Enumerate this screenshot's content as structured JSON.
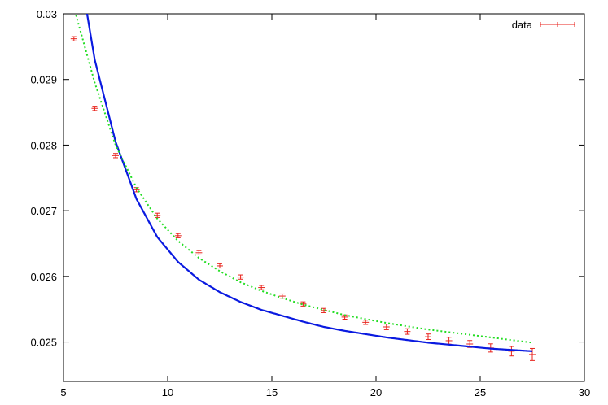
{
  "chart_data": {
    "type": "scatter",
    "title": "",
    "xlabel": "",
    "ylabel": "",
    "xlim": [
      5,
      30
    ],
    "ylim": [
      0.0244,
      0.03
    ],
    "x_ticks": [
      5,
      10,
      15,
      20,
      25,
      30
    ],
    "y_ticks": [
      0.025,
      0.026,
      0.027,
      0.028,
      0.029,
      0.03
    ],
    "x_tick_labels": [
      "5",
      "10",
      "15",
      "20",
      "25",
      "30"
    ],
    "y_tick_labels": [
      "0.025",
      "0.026",
      "0.027",
      "0.028",
      "0.029",
      "0.03"
    ],
    "grid": false,
    "legend": {
      "position": "top-right",
      "entries": [
        "data"
      ]
    },
    "series": [
      {
        "name": "data",
        "kind": "points-with-errorbars",
        "color": "#e8221b",
        "x": [
          5.5,
          6.5,
          7.5,
          8.5,
          9.5,
          10.5,
          11.5,
          12.5,
          13.5,
          14.5,
          15.5,
          16.5,
          17.5,
          18.5,
          19.5,
          20.5,
          21.5,
          22.5,
          23.5,
          24.5,
          25.5,
          26.5,
          27.5
        ],
        "y": [
          0.02962,
          0.02856,
          0.02784,
          0.02732,
          0.02693,
          0.02662,
          0.02636,
          0.02616,
          0.02599,
          0.02583,
          0.0257,
          0.02558,
          0.02548,
          0.02538,
          0.0253,
          0.02523,
          0.02516,
          0.02508,
          0.02502,
          0.02497,
          0.02491,
          0.02486,
          0.02481
        ],
        "yerr": [
          2e-05,
          2e-05,
          2e-05,
          2e-05,
          2e-05,
          2e-05,
          2e-05,
          2e-05,
          2e-05,
          2e-05,
          2e-05,
          2e-05,
          2e-05,
          2e-05,
          2e-05,
          3e-05,
          3e-05,
          3e-05,
          4e-05,
          4e-05,
          5e-05,
          6e-05,
          8e-05
        ]
      },
      {
        "kind": "line",
        "style": "solid",
        "color": "#0a1ae0",
        "x": [
          5.5,
          6.5,
          7.5,
          8.5,
          9.5,
          10.5,
          11.5,
          12.5,
          13.5,
          14.5,
          15.5,
          16.5,
          17.5,
          18.5,
          19.5,
          20.5,
          21.5,
          22.5,
          23.5,
          24.5,
          25.5,
          26.5,
          27.5
        ],
        "y": [
          0.0312,
          0.0293,
          0.02805,
          0.02718,
          0.0266,
          0.02622,
          0.02595,
          0.02576,
          0.02561,
          0.02549,
          0.0254,
          0.02531,
          0.02523,
          0.02517,
          0.02512,
          0.02507,
          0.02503,
          0.02499,
          0.02496,
          0.02493,
          0.0249,
          0.02488,
          0.02486
        ]
      },
      {
        "kind": "line",
        "style": "dotted",
        "color": "#22dd22",
        "x": [
          5.5,
          6.5,
          7.5,
          8.5,
          9.5,
          10.5,
          11.5,
          12.5,
          13.5,
          14.5,
          15.5,
          16.5,
          17.5,
          18.5,
          19.5,
          20.5,
          21.5,
          22.5,
          23.5,
          24.5,
          25.5,
          26.5,
          27.5
        ],
        "y": [
          0.0301,
          0.02895,
          0.028,
          0.02735,
          0.02688,
          0.02654,
          0.02628,
          0.02608,
          0.02591,
          0.02578,
          0.02567,
          0.02557,
          0.02549,
          0.02541,
          0.02535,
          0.02529,
          0.02524,
          0.02519,
          0.02515,
          0.02511,
          0.02507,
          0.02503,
          0.02499
        ]
      }
    ]
  }
}
